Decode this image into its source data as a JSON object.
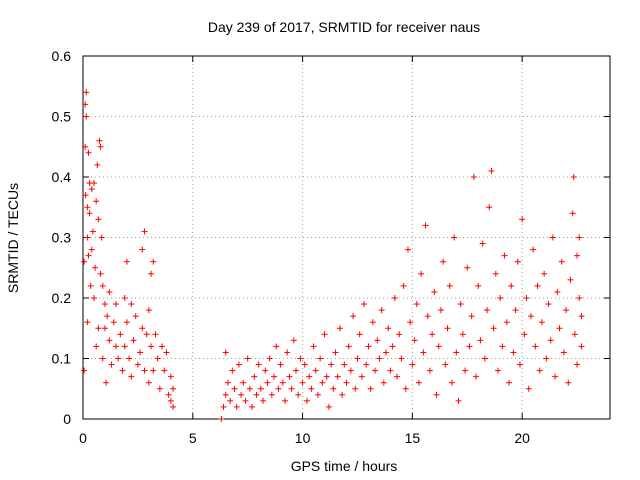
{
  "chart_data": {
    "type": "scatter",
    "title": "Day 239 of 2017, SRMTID for receiver naus",
    "xlabel": "GPS time / hours",
    "ylabel": "SRMTID / TECUs",
    "xlim": [
      0,
      24
    ],
    "ylim": [
      0,
      0.6
    ],
    "x_ticks": [
      0,
      5,
      10,
      15,
      20
    ],
    "x_tick_labels": [
      "0",
      "5",
      "10",
      "15",
      "20"
    ],
    "y_ticks": [
      0,
      0.1,
      0.2,
      0.3,
      0.4,
      0.5,
      0.6
    ],
    "y_tick_labels": [
      "0",
      "0.1",
      "0.2",
      "0.3",
      "0.4",
      "0.5",
      "0.6"
    ],
    "grid": true,
    "marker": "+",
    "color": "#ff0000",
    "series": [
      {
        "name": "SRMTID",
        "points": [
          [
            0.05,
            0.08
          ],
          [
            0.05,
            0.26
          ],
          [
            0.1,
            0.52
          ],
          [
            0.1,
            0.45
          ],
          [
            0.12,
            0.37
          ],
          [
            0.15,
            0.54
          ],
          [
            0.15,
            0.5
          ],
          [
            0.2,
            0.3
          ],
          [
            0.2,
            0.35
          ],
          [
            0.2,
            0.16
          ],
          [
            0.25,
            0.44
          ],
          [
            0.25,
            0.27
          ],
          [
            0.3,
            0.39
          ],
          [
            0.3,
            0.34
          ],
          [
            0.35,
            0.22
          ],
          [
            0.4,
            0.38
          ],
          [
            0.4,
            0.28
          ],
          [
            0.45,
            0.31
          ],
          [
            0.5,
            0.39
          ],
          [
            0.5,
            0.2
          ],
          [
            0.55,
            0.25
          ],
          [
            0.6,
            0.36
          ],
          [
            0.6,
            0.12
          ],
          [
            0.65,
            0.42
          ],
          [
            0.7,
            0.33
          ],
          [
            0.7,
            0.15
          ],
          [
            0.75,
            0.46
          ],
          [
            0.8,
            0.45
          ],
          [
            0.8,
            0.24
          ],
          [
            0.85,
            0.3
          ],
          [
            0.9,
            0.22
          ],
          [
            0.9,
            0.1
          ],
          [
            1.0,
            0.19
          ],
          [
            1.0,
            0.15
          ],
          [
            1.05,
            0.06
          ],
          [
            1.1,
            0.17
          ],
          [
            1.2,
            0.13
          ],
          [
            1.2,
            0.21
          ],
          [
            1.3,
            0.09
          ],
          [
            1.4,
            0.16
          ],
          [
            1.5,
            0.12
          ],
          [
            1.5,
            0.19
          ],
          [
            1.6,
            0.1
          ],
          [
            1.7,
            0.14
          ],
          [
            1.8,
            0.08
          ],
          [
            1.9,
            0.2
          ],
          [
            1.9,
            0.12
          ],
          [
            2.0,
            0.26
          ],
          [
            2.0,
            0.16
          ],
          [
            2.1,
            0.1
          ],
          [
            2.2,
            0.19
          ],
          [
            2.2,
            0.07
          ],
          [
            2.3,
            0.13
          ],
          [
            2.4,
            0.17
          ],
          [
            2.5,
            0.09
          ],
          [
            2.6,
            0.11
          ],
          [
            2.7,
            0.28
          ],
          [
            2.7,
            0.15
          ],
          [
            2.8,
            0.31
          ],
          [
            2.8,
            0.08
          ],
          [
            2.9,
            0.14
          ],
          [
            3.0,
            0.18
          ],
          [
            3.0,
            0.06
          ],
          [
            3.1,
            0.24
          ],
          [
            3.1,
            0.12
          ],
          [
            3.2,
            0.26
          ],
          [
            3.2,
            0.08
          ],
          [
            3.3,
            0.14
          ],
          [
            3.4,
            0.1
          ],
          [
            3.5,
            0.05
          ],
          [
            3.6,
            0.12
          ],
          [
            3.7,
            0.08
          ],
          [
            3.8,
            0.11
          ],
          [
            3.9,
            0.04
          ],
          [
            4.0,
            0.07
          ],
          [
            4.0,
            0.03
          ],
          [
            4.1,
            0.05
          ],
          [
            4.1,
            0.02
          ],
          [
            6.3,
            0.0
          ],
          [
            6.4,
            0.02
          ],
          [
            6.5,
            0.11
          ],
          [
            6.5,
            0.04
          ],
          [
            6.6,
            0.06
          ],
          [
            6.7,
            0.03
          ],
          [
            6.8,
            0.08
          ],
          [
            6.9,
            0.05
          ],
          [
            7.0,
            0.02
          ],
          [
            7.1,
            0.09
          ],
          [
            7.2,
            0.04
          ],
          [
            7.3,
            0.06
          ],
          [
            7.4,
            0.03
          ],
          [
            7.5,
            0.1
          ],
          [
            7.6,
            0.05
          ],
          [
            7.7,
            0.02
          ],
          [
            7.8,
            0.07
          ],
          [
            7.9,
            0.04
          ],
          [
            8.0,
            0.09
          ],
          [
            8.1,
            0.05
          ],
          [
            8.2,
            0.03
          ],
          [
            8.3,
            0.08
          ],
          [
            8.4,
            0.06
          ],
          [
            8.5,
            0.1
          ],
          [
            8.6,
            0.04
          ],
          [
            8.7,
            0.07
          ],
          [
            8.8,
            0.12
          ],
          [
            8.9,
            0.05
          ],
          [
            9.0,
            0.09
          ],
          [
            9.1,
            0.06
          ],
          [
            9.2,
            0.03
          ],
          [
            9.3,
            0.11
          ],
          [
            9.4,
            0.07
          ],
          [
            9.5,
            0.05
          ],
          [
            9.6,
            0.13
          ],
          [
            9.7,
            0.08
          ],
          [
            9.8,
            0.04
          ],
          [
            9.9,
            0.1
          ],
          [
            10.0,
            0.06
          ],
          [
            10.1,
            0.09
          ],
          [
            10.2,
            0.03
          ],
          [
            10.3,
            0.07
          ],
          [
            10.4,
            0.05
          ],
          [
            10.5,
            0.12
          ],
          [
            10.6,
            0.08
          ],
          [
            10.7,
            0.04
          ],
          [
            10.8,
            0.1
          ],
          [
            10.9,
            0.06
          ],
          [
            11.0,
            0.14
          ],
          [
            11.1,
            0.07
          ],
          [
            11.2,
            0.02
          ],
          [
            11.3,
            0.09
          ],
          [
            11.4,
            0.05
          ],
          [
            11.5,
            0.11
          ],
          [
            11.6,
            0.07
          ],
          [
            11.7,
            0.15
          ],
          [
            11.8,
            0.04
          ],
          [
            11.9,
            0.09
          ],
          [
            12.0,
            0.06
          ],
          [
            12.1,
            0.12
          ],
          [
            12.2,
            0.08
          ],
          [
            12.3,
            0.17
          ],
          [
            12.4,
            0.05
          ],
          [
            12.5,
            0.1
          ],
          [
            12.6,
            0.14
          ],
          [
            12.7,
            0.07
          ],
          [
            12.8,
            0.19
          ],
          [
            12.9,
            0.09
          ],
          [
            13.0,
            0.12
          ],
          [
            13.1,
            0.05
          ],
          [
            13.2,
            0.16
          ],
          [
            13.3,
            0.08
          ],
          [
            13.4,
            0.13
          ],
          [
            13.5,
            0.1
          ],
          [
            13.6,
            0.18
          ],
          [
            13.7,
            0.06
          ],
          [
            13.8,
            0.11
          ],
          [
            13.9,
            0.15
          ],
          [
            14.0,
            0.08
          ],
          [
            14.1,
            0.12
          ],
          [
            14.2,
            0.2
          ],
          [
            14.3,
            0.07
          ],
          [
            14.4,
            0.14
          ],
          [
            14.5,
            0.1
          ],
          [
            14.6,
            0.22
          ],
          [
            14.7,
            0.05
          ],
          [
            14.8,
            0.28
          ],
          [
            14.9,
            0.16
          ],
          [
            15.0,
            0.09
          ],
          [
            15.1,
            0.13
          ],
          [
            15.2,
            0.19
          ],
          [
            15.3,
            0.06
          ],
          [
            15.4,
            0.24
          ],
          [
            15.5,
            0.11
          ],
          [
            15.6,
            0.32
          ],
          [
            15.7,
            0.17
          ],
          [
            15.8,
            0.08
          ],
          [
            15.9,
            0.14
          ],
          [
            16.0,
            0.21
          ],
          [
            16.1,
            0.04
          ],
          [
            16.2,
            0.12
          ],
          [
            16.3,
            0.18
          ],
          [
            16.4,
            0.26
          ],
          [
            16.5,
            0.09
          ],
          [
            16.6,
            0.15
          ],
          [
            16.7,
            0.22
          ],
          [
            16.8,
            0.06
          ],
          [
            16.9,
            0.3
          ],
          [
            17.0,
            0.11
          ],
          [
            17.1,
            0.03
          ],
          [
            17.2,
            0.19
          ],
          [
            17.3,
            0.14
          ],
          [
            17.4,
            0.08
          ],
          [
            17.5,
            0.25
          ],
          [
            17.6,
            0.12
          ],
          [
            17.7,
            0.17
          ],
          [
            17.8,
            0.4
          ],
          [
            17.9,
            0.07
          ],
          [
            18.0,
            0.22
          ],
          [
            18.1,
            0.13
          ],
          [
            18.2,
            0.29
          ],
          [
            18.3,
            0.1
          ],
          [
            18.4,
            0.18
          ],
          [
            18.5,
            0.35
          ],
          [
            18.6,
            0.41
          ],
          [
            18.7,
            0.15
          ],
          [
            18.8,
            0.24
          ],
          [
            18.9,
            0.08
          ],
          [
            19.0,
            0.2
          ],
          [
            19.1,
            0.12
          ],
          [
            19.2,
            0.27
          ],
          [
            19.3,
            0.16
          ],
          [
            19.4,
            0.06
          ],
          [
            19.5,
            0.22
          ],
          [
            19.6,
            0.11
          ],
          [
            19.7,
            0.18
          ],
          [
            19.8,
            0.26
          ],
          [
            19.9,
            0.09
          ],
          [
            20.0,
            0.33
          ],
          [
            20.1,
            0.14
          ],
          [
            20.2,
            0.2
          ],
          [
            20.3,
            0.05
          ],
          [
            20.4,
            0.17
          ],
          [
            20.5,
            0.28
          ],
          [
            20.6,
            0.12
          ],
          [
            20.7,
            0.22
          ],
          [
            20.8,
            0.08
          ],
          [
            20.9,
            0.16
          ],
          [
            21.0,
            0.24
          ],
          [
            21.1,
            0.1
          ],
          [
            21.2,
            0.19
          ],
          [
            21.3,
            0.13
          ],
          [
            21.4,
            0.3
          ],
          [
            21.5,
            0.07
          ],
          [
            21.6,
            0.21
          ],
          [
            21.7,
            0.15
          ],
          [
            21.8,
            0.26
          ],
          [
            21.9,
            0.11
          ],
          [
            22.0,
            0.18
          ],
          [
            22.1,
            0.06
          ],
          [
            22.2,
            0.23
          ],
          [
            22.3,
            0.34
          ],
          [
            22.35,
            0.4
          ],
          [
            22.4,
            0.14
          ],
          [
            22.5,
            0.27
          ],
          [
            22.5,
            0.09
          ],
          [
            22.6,
            0.2
          ],
          [
            22.6,
            0.3
          ],
          [
            22.7,
            0.12
          ],
          [
            22.7,
            0.17
          ]
        ]
      }
    ]
  }
}
